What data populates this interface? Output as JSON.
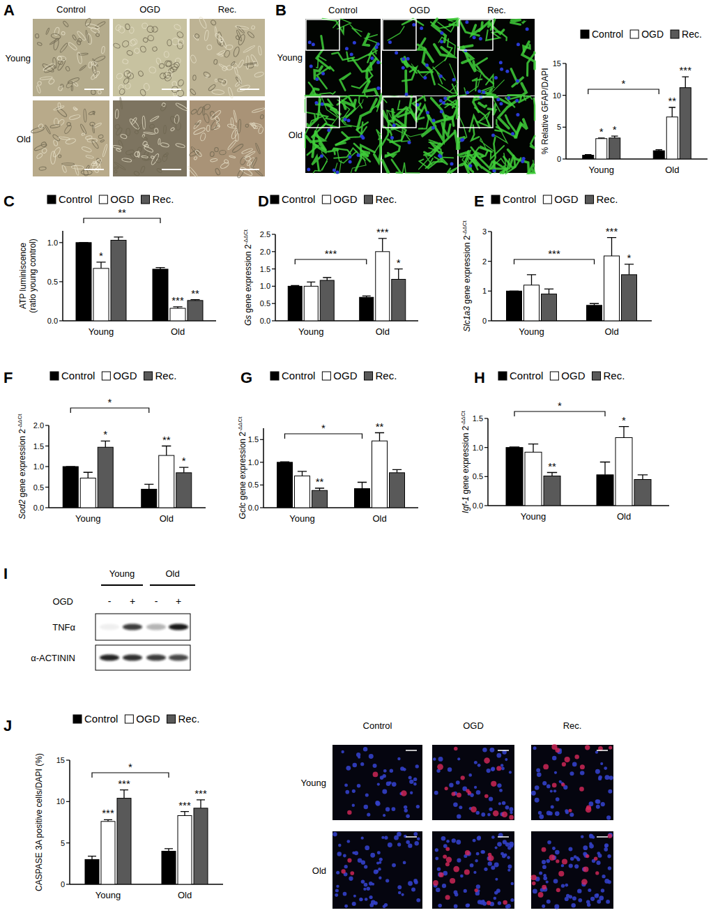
{
  "chart_data": [
    {
      "type": "bar",
      "panel": "B",
      "ylabel": [
        "% Relative GFAP/DAPI"
      ],
      "categories": [
        "Young",
        "Old"
      ],
      "ylim": [
        0,
        15
      ],
      "yticks": [
        0,
        5,
        10,
        15
      ],
      "comparison": "*",
      "series": [
        {
          "name": "Control",
          "color": "#000000",
          "values": [
            0.6,
            1.3
          ],
          "errors": [
            0.1,
            0.15
          ],
          "significance": [
            null,
            null
          ]
        },
        {
          "name": "OGD",
          "color": "#ffffff",
          "values": [
            3.2,
            6.6
          ],
          "errors": [
            0.1,
            1.5
          ],
          "significance": [
            "*",
            "**"
          ]
        },
        {
          "name": "Rec.",
          "color": "#595959",
          "values": [
            3.3,
            11.2
          ],
          "errors": [
            0.3,
            1.7
          ],
          "significance": [
            "*",
            "***"
          ]
        }
      ]
    },
    {
      "type": "bar",
      "panel": "C",
      "ylabel": [
        "ATP luminiscence",
        "(ratio young control)"
      ],
      "categories": [
        "Young",
        "Old"
      ],
      "ylim": [
        0,
        1.15
      ],
      "yticks": [
        {
          "value": 0,
          "label": "0.0"
        },
        0.5,
        {
          "value": 1,
          "label": "1.0"
        }
      ],
      "comparison": "**",
      "series": [
        {
          "name": "Control",
          "color": "#000000",
          "values": [
            1.0,
            0.66
          ],
          "errors": [
            0,
            0.02
          ],
          "significance": [
            null,
            null
          ]
        },
        {
          "name": "OGD",
          "color": "#ffffff",
          "values": [
            0.67,
            0.16
          ],
          "errors": [
            0.08,
            0.02
          ],
          "significance": [
            "*",
            "***"
          ]
        },
        {
          "name": "Rec.",
          "color": "#595959",
          "values": [
            1.03,
            0.26
          ],
          "errors": [
            0.04,
            0.01
          ],
          "significance": [
            null,
            "**"
          ]
        }
      ]
    },
    {
      "type": "bar",
      "panel": "D",
      "gene": "Gs",
      "ylabel": [
        "gene expression 2"
      ],
      "ylabel_sup": "-ΔΔCt",
      "categories": [
        "Young",
        "Old"
      ],
      "ylim": [
        0,
        2.5
      ],
      "yticks": [
        {
          "value": 0,
          "label": "0.0"
        },
        0.5,
        {
          "value": 1,
          "label": "1.0"
        },
        1.5,
        {
          "value": 2,
          "label": "2.0"
        },
        2.5
      ],
      "comparison": "***",
      "series": [
        {
          "name": "Control",
          "color": "#000000",
          "values": [
            1.0,
            0.68
          ],
          "errors": [
            0.02,
            0.04
          ],
          "significance": [
            null,
            null
          ]
        },
        {
          "name": "OGD",
          "color": "#ffffff",
          "values": [
            1.0,
            2.0
          ],
          "errors": [
            0.12,
            0.38
          ],
          "significance": [
            null,
            "***"
          ]
        },
        {
          "name": "Rec.",
          "color": "#595959",
          "values": [
            1.17,
            1.2
          ],
          "errors": [
            0.08,
            0.3
          ],
          "significance": [
            null,
            "*"
          ]
        }
      ]
    },
    {
      "type": "bar",
      "panel": "E",
      "gene": "Slc1a3",
      "ylabel": [
        "gene expression 2"
      ],
      "ylabel_sup": "-ΔΔCt",
      "categories": [
        "Young",
        "Old"
      ],
      "ylim": [
        0,
        3
      ],
      "yticks": [
        0,
        1,
        2,
        3
      ],
      "comparison": "***",
      "series": [
        {
          "name": "Control",
          "color": "#000000",
          "values": [
            1.0,
            0.52
          ],
          "errors": [
            0,
            0.06
          ],
          "significance": [
            null,
            null
          ]
        },
        {
          "name": "OGD",
          "color": "#ffffff",
          "values": [
            1.2,
            2.18
          ],
          "errors": [
            0.35,
            0.62
          ],
          "significance": [
            null,
            "***"
          ]
        },
        {
          "name": "Rec.",
          "color": "#595959",
          "values": [
            0.9,
            1.55
          ],
          "errors": [
            0.17,
            0.35
          ],
          "significance": [
            null,
            "*"
          ]
        }
      ]
    },
    {
      "type": "bar",
      "panel": "F",
      "gene": "Sod2",
      "ylabel": [
        "gene expression 2"
      ],
      "ylabel_sup": "-ΔΔCt",
      "categories": [
        "Young",
        "Old"
      ],
      "ylim": [
        0,
        2.0
      ],
      "yticks": [
        {
          "value": 0,
          "label": "0.0"
        },
        0.5,
        {
          "value": 1,
          "label": "1.0"
        },
        1.5,
        {
          "value": 2,
          "label": "2.0"
        }
      ],
      "comparison": "*",
      "series": [
        {
          "name": "Control",
          "color": "#000000",
          "values": [
            1.0,
            0.45
          ],
          "errors": [
            0,
            0.12
          ],
          "significance": [
            null,
            null
          ]
        },
        {
          "name": "OGD",
          "color": "#ffffff",
          "values": [
            0.72,
            1.27
          ],
          "errors": [
            0.14,
            0.23
          ],
          "significance": [
            null,
            "**"
          ]
        },
        {
          "name": "Rec.",
          "color": "#595959",
          "values": [
            1.47,
            0.85
          ],
          "errors": [
            0.15,
            0.13
          ],
          "significance": [
            "*",
            "*"
          ]
        }
      ]
    },
    {
      "type": "bar",
      "panel": "G",
      "gene": "Gclc",
      "ylabel": [
        "gene expression 2"
      ],
      "ylabel_sup": "-ΔΔCt",
      "categories": [
        "Young",
        "Old"
      ],
      "ylim": [
        0,
        1.75
      ],
      "yticks": [
        {
          "value": 0,
          "label": "0.0"
        },
        0.5,
        {
          "value": 1,
          "label": "1.0"
        },
        1.5
      ],
      "comparison": "*",
      "series": [
        {
          "name": "Control",
          "color": "#000000",
          "values": [
            1.0,
            0.42
          ],
          "errors": [
            0.01,
            0.14
          ],
          "significance": [
            null,
            null
          ]
        },
        {
          "name": "OGD",
          "color": "#ffffff",
          "values": [
            0.7,
            1.47
          ],
          "errors": [
            0.1,
            0.18
          ],
          "significance": [
            null,
            "**"
          ]
        },
        {
          "name": "Rec.",
          "color": "#595959",
          "values": [
            0.38,
            0.77
          ],
          "errors": [
            0.05,
            0.07
          ],
          "significance": [
            "**",
            null
          ]
        }
      ]
    },
    {
      "type": "bar",
      "panel": "H",
      "gene": "Igf-1",
      "ylabel": [
        "gene expression 2"
      ],
      "ylabel_sup": "-ΔΔCt",
      "categories": [
        "Young",
        "Old"
      ],
      "ylim": [
        0,
        1.5
      ],
      "yticks": [
        {
          "value": 0,
          "label": "0.0"
        },
        0.5,
        {
          "value": 1,
          "label": "1.0"
        },
        1.5
      ],
      "comparison": "*",
      "series": [
        {
          "name": "Control",
          "color": "#000000",
          "values": [
            1.0,
            0.53
          ],
          "errors": [
            0.01,
            0.22
          ],
          "significance": [
            null,
            null
          ]
        },
        {
          "name": "OGD",
          "color": "#ffffff",
          "values": [
            0.92,
            1.17
          ],
          "errors": [
            0.14,
            0.19
          ],
          "significance": [
            null,
            "*"
          ]
        },
        {
          "name": "Rec.",
          "color": "#595959",
          "values": [
            0.51,
            0.45
          ],
          "errors": [
            0.06,
            0.08
          ],
          "significance": [
            "**",
            null
          ]
        }
      ]
    },
    {
      "type": "bar",
      "panel": "J",
      "ylabel": [
        "CASPASE 3A positive cells/DAPI (%)"
      ],
      "categories": [
        "Young",
        "Old"
      ],
      "ylim": [
        0,
        15
      ],
      "yticks": [
        0,
        5,
        10,
        15
      ],
      "comparison": "*",
      "series": [
        {
          "name": "Control",
          "color": "#000000",
          "values": [
            3.0,
            4.0
          ],
          "errors": [
            0.4,
            0.3
          ],
          "significance": [
            null,
            null
          ]
        },
        {
          "name": "OGD",
          "color": "#ffffff",
          "values": [
            7.6,
            8.3
          ],
          "errors": [
            0.2,
            0.5
          ],
          "significance": [
            "***",
            "***"
          ]
        },
        {
          "name": "Rec.",
          "color": "#595959",
          "values": [
            10.4,
            9.2
          ],
          "errors": [
            1.0,
            1.0
          ],
          "significance": [
            "***",
            "***"
          ]
        }
      ]
    }
  ],
  "images": {
    "A": {
      "letter": "A",
      "columns": [
        "Control",
        "OGD",
        "Rec."
      ],
      "rows": [
        "Young",
        "Old"
      ]
    },
    "B": {
      "columns": [
        "Control",
        "OGD",
        "Rec."
      ],
      "rows": [
        "Young",
        "Old"
      ]
    },
    "J": {
      "columns": [
        "Control",
        "OGD",
        "Rec."
      ],
      "rows": [
        "Young",
        "Old"
      ]
    }
  },
  "blot": {
    "letter": "I",
    "groups": [
      "Young",
      "Old"
    ],
    "treatment": "OGD",
    "lanes": [
      "-",
      "+",
      "-",
      "+"
    ],
    "proteins": [
      "TNFα",
      "α-ACTININ"
    ]
  }
}
